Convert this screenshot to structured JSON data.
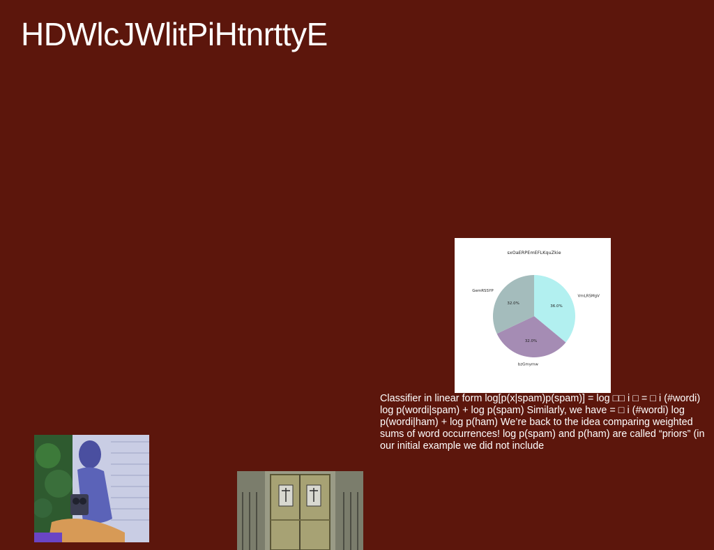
{
  "page": {
    "title": "HDWlcJWlitPiHtnrttyE",
    "body_text": "Classifier in linear form log[p(x|spam)p(spam)] = log □□ i □ = □ i (#wordi) log p(wordi|spam) + log p(spam) Similarly, we have = □ i (#wordi) log p(wordi|ham) + log p(ham) We’re back to the idea comparing weighted sums of word occurrences! log p(spam) and p(ham) are called “priors” (in our initial example we did not include"
  },
  "chart_data": {
    "type": "pie",
    "title": "sxOaERPEmEFLKquZkie",
    "slices": [
      {
        "label": "VmLRSMgV",
        "value": 36.0,
        "pct_label": "36.0%",
        "color": "#b2f0f0"
      },
      {
        "label": "bzGmymw",
        "value": 32.0,
        "pct_label": "32.0%",
        "color": "#a58cb4"
      },
      {
        "label": "GemRSSYP",
        "value": 32.0,
        "pct_label": "32.0%",
        "color": "#a4bcbc"
      }
    ],
    "start_angle_deg": 90,
    "direction": "clockwise"
  },
  "images": [
    {
      "name": "person-with-camera-photo"
    },
    {
      "name": "wooden-door-photo"
    }
  ],
  "colors": {
    "background": "#5c160c",
    "text": "#ffffff"
  }
}
